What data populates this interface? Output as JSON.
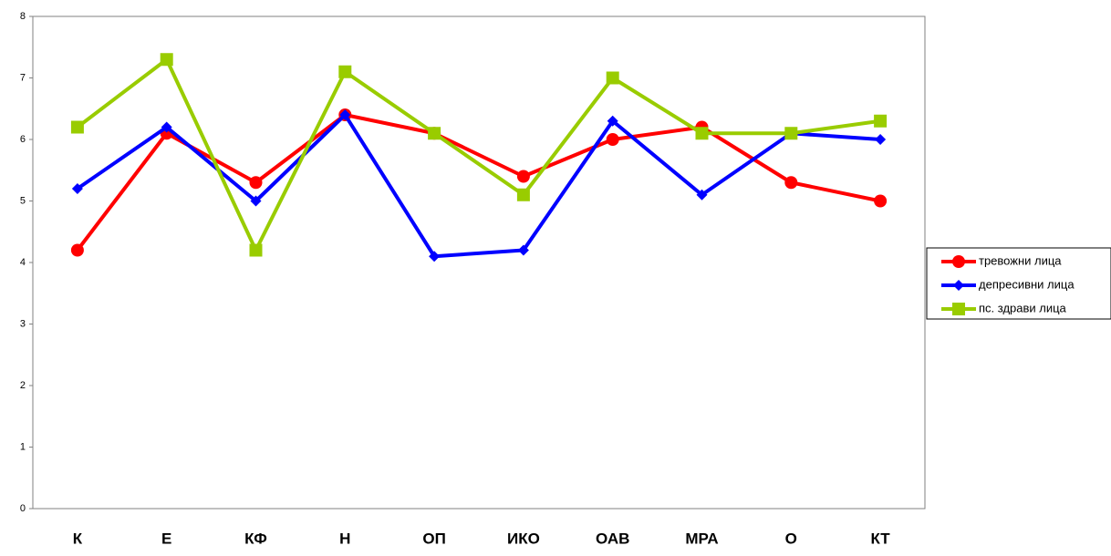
{
  "chart_data": {
    "type": "line",
    "categories": [
      "К",
      "Е",
      "КФ",
      "Н",
      "ОП",
      "ИКО",
      "ОАВ",
      "МРА",
      "О",
      "КТ"
    ],
    "series": [
      {
        "name": "тревожни лица",
        "color": "#ff0000",
        "marker": "circle",
        "values": [
          4.2,
          6.1,
          5.3,
          6.4,
          6.1,
          5.4,
          6.0,
          6.2,
          5.3,
          5.0
        ]
      },
      {
        "name": "депресивни лица",
        "color": "#0000ff",
        "marker": "diamond",
        "values": [
          5.2,
          6.2,
          5.0,
          6.4,
          4.1,
          4.2,
          6.3,
          5.1,
          6.1,
          6.0
        ]
      },
      {
        "name": "пс. здрави лица",
        "color": "#99cc00",
        "marker": "square",
        "values": [
          6.2,
          7.3,
          4.2,
          7.1,
          6.1,
          5.1,
          7.0,
          6.1,
          6.1,
          6.3
        ]
      }
    ],
    "ylim": [
      0,
      8
    ],
    "yticks": [
      0,
      1,
      2,
      3,
      4,
      5,
      6,
      7,
      8
    ],
    "grid": false,
    "legend": "right"
  }
}
